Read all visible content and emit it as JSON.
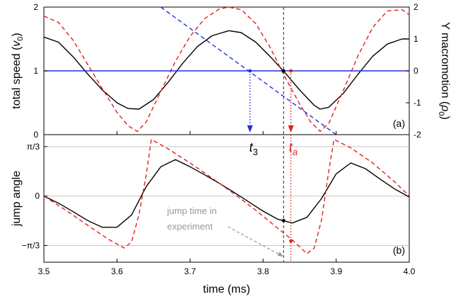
{
  "chart_data": [
    {
      "panel": "(a)",
      "type": "line",
      "xlim": [
        3.5,
        4.0
      ],
      "ylabel_left": "total speed (v0)",
      "ylabel_left_parts": [
        "total speed (",
        "v",
        "0",
        ")"
      ],
      "ylim_left": [
        0,
        2
      ],
      "yticks_left": [
        "0",
        "1",
        "2"
      ],
      "ylabel_right": "Y macromotion (ρ0)",
      "ylabel_right_parts": [
        "Y macromotion (",
        "ρ",
        "0",
        ")"
      ],
      "ylim_right": [
        -2,
        2
      ],
      "yticks_right": [
        "-2",
        "-1",
        "0",
        "1",
        "2"
      ],
      "grid": "horizontal",
      "series": [
        {
          "style": "solid",
          "color": "#000000",
          "axis": "left",
          "x": [
            3.5,
            3.52,
            3.54,
            3.56,
            3.58,
            3.6,
            3.615,
            3.63,
            3.65,
            3.67,
            3.69,
            3.71,
            3.73,
            3.753,
            3.77,
            3.79,
            3.81,
            3.83,
            3.85,
            3.87,
            3.878,
            3.89,
            3.91,
            3.93,
            3.95,
            3.97,
            3.99,
            4.0
          ],
          "y": [
            1.53,
            1.45,
            1.22,
            0.95,
            0.7,
            0.5,
            0.41,
            0.4,
            0.55,
            0.82,
            1.12,
            1.38,
            1.55,
            1.63,
            1.6,
            1.45,
            1.22,
            0.97,
            0.7,
            0.46,
            0.4,
            0.43,
            0.65,
            0.95,
            1.23,
            1.42,
            1.5,
            1.5
          ]
        },
        {
          "style": "dashed",
          "color": "#e02020",
          "axis": "left",
          "x": [
            3.5,
            3.52,
            3.54,
            3.56,
            3.58,
            3.6,
            3.615,
            3.628,
            3.64,
            3.66,
            3.68,
            3.7,
            3.72,
            3.74,
            3.753,
            3.77,
            3.79,
            3.81,
            3.83,
            3.85,
            3.865,
            3.878,
            3.89,
            3.91,
            3.93,
            3.95,
            3.97,
            3.99,
            4.0
          ],
          "y": [
            1.86,
            1.76,
            1.48,
            1.1,
            0.72,
            0.35,
            0.14,
            0.05,
            0.2,
            0.68,
            1.15,
            1.54,
            1.82,
            1.97,
            2.0,
            1.96,
            1.74,
            1.36,
            0.9,
            0.48,
            0.2,
            0.05,
            0.18,
            0.7,
            1.24,
            1.68,
            1.94,
            1.96,
            1.88
          ]
        },
        {
          "style": "solid",
          "color": "#2030e0",
          "axis": "left",
          "x": [
            3.5,
            4.0
          ],
          "y": [
            1.0,
            1.0
          ]
        },
        {
          "style": "dashed",
          "color": "#2030e0",
          "axis": "right",
          "x": [
            3.66,
            3.9
          ],
          "y": [
            2.0,
            -2.0
          ]
        }
      ],
      "markers": [
        {
          "x": 3.782,
          "y": 1.0,
          "color": "#2030e0"
        },
        {
          "x": 3.828,
          "y": 1.0,
          "color": "#000000"
        },
        {
          "x": 3.838,
          "y": 1.0,
          "color": "#e02020"
        }
      ],
      "annotations": [
        {
          "label": "t3",
          "text_parts": [
            "t",
            "3"
          ],
          "x": 3.782,
          "color": "#2030e0"
        },
        {
          "label": "ta",
          "text_parts": [
            "t",
            "a"
          ],
          "x": 3.838,
          "color": "#e02020"
        }
      ]
    },
    {
      "panel": "(b)",
      "type": "line",
      "xlim": [
        3.5,
        4.0
      ],
      "xlabel": "time (ms)",
      "xticks": [
        "3.5",
        "3.6",
        "3.7",
        "3.8",
        "3.9",
        "4.0"
      ],
      "ylabel": "jump angle",
      "ylim": [
        -1.4,
        1.3
      ],
      "yticks": [
        {
          "value": 1.0472,
          "label": "π/3"
        },
        {
          "value": 0,
          "label": "0"
        },
        {
          "value": -1.0472,
          "label": "−π/3"
        }
      ],
      "grid": "horizontal",
      "series": [
        {
          "style": "solid",
          "color": "#000000",
          "x": [
            3.5,
            3.52,
            3.54,
            3.56,
            3.58,
            3.6,
            3.62,
            3.64,
            3.66,
            3.68,
            3.7,
            3.72,
            3.74,
            3.76,
            3.78,
            3.8,
            3.82,
            3.84,
            3.86,
            3.88,
            3.9,
            3.92,
            3.94,
            3.96,
            3.98,
            4.0
          ],
          "y": [
            0.0,
            -0.15,
            -0.33,
            -0.52,
            -0.66,
            -0.66,
            -0.4,
            0.2,
            0.62,
            0.77,
            0.62,
            0.45,
            0.27,
            0.08,
            -0.12,
            -0.32,
            -0.49,
            -0.57,
            -0.45,
            -0.05,
            0.47,
            0.7,
            0.58,
            0.36,
            0.15,
            -0.02
          ]
        },
        {
          "style": "dashed",
          "color": "#e02020",
          "x": [
            3.5,
            3.53,
            3.56,
            3.59,
            3.61,
            3.62,
            3.63,
            3.64,
            3.647,
            3.67,
            3.7,
            3.73,
            3.76,
            3.79,
            3.82,
            3.84,
            3.86,
            3.87,
            3.88,
            3.89,
            3.897,
            3.92,
            3.95,
            3.98,
            4.0
          ],
          "y": [
            0.0,
            -0.3,
            -0.62,
            -0.93,
            -1.1,
            -0.97,
            -0.4,
            0.45,
            1.2,
            1.0,
            0.7,
            0.38,
            0.05,
            -0.3,
            -0.68,
            -0.93,
            -1.22,
            -1.1,
            -0.5,
            0.55,
            1.2,
            1.02,
            0.7,
            0.3,
            0.0
          ]
        }
      ],
      "markers": [
        {
          "x": 3.828,
          "y": -0.52,
          "color": "#000000"
        },
        {
          "x": 3.838,
          "y": -0.95,
          "color": "#e02020"
        }
      ],
      "annotations": [
        {
          "text": "jump time in experiment",
          "lines": [
            "jump time in",
            "experiment"
          ],
          "color": "#999999"
        }
      ]
    }
  ]
}
